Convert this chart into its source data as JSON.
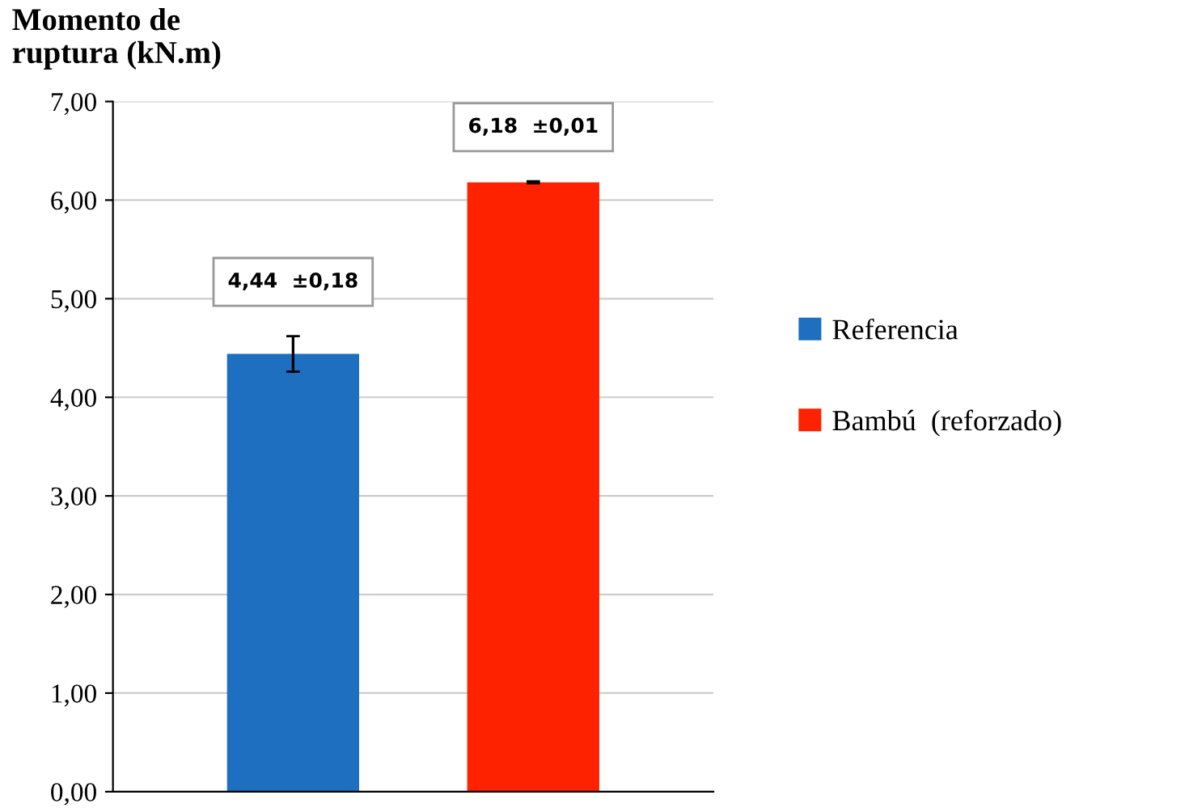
{
  "chart_data": {
    "type": "bar",
    "ylabel": "Momento de\nruptura (kN.m)",
    "categories": [
      null,
      null
    ],
    "series": [
      {
        "name": "Referencia",
        "color": "#1f6fc0",
        "values": [
          4.44,
          null
        ],
        "errors": [
          0.18,
          null
        ],
        "value_labels": [
          "4,44  ±0,18",
          null
        ]
      },
      {
        "name": "Bambú  (reforzado)",
        "color": "#ff2200",
        "values": [
          null,
          6.18
        ],
        "errors": [
          null,
          0.01
        ],
        "value_labels": [
          null,
          "6,18  ±0,01"
        ]
      }
    ],
    "ylim": [
      0,
      7
    ],
    "yticks": [
      {
        "value": 0,
        "label": "0,00"
      },
      {
        "value": 1,
        "label": "1,00"
      },
      {
        "value": 2,
        "label": "2,00"
      },
      {
        "value": 3,
        "label": "3,00"
      },
      {
        "value": 4,
        "label": "4,00"
      },
      {
        "value": 5,
        "label": "5,00"
      },
      {
        "value": 6,
        "label": "6,00"
      },
      {
        "value": 7,
        "label": "7,00"
      }
    ],
    "grid": "y",
    "legend": "right"
  }
}
